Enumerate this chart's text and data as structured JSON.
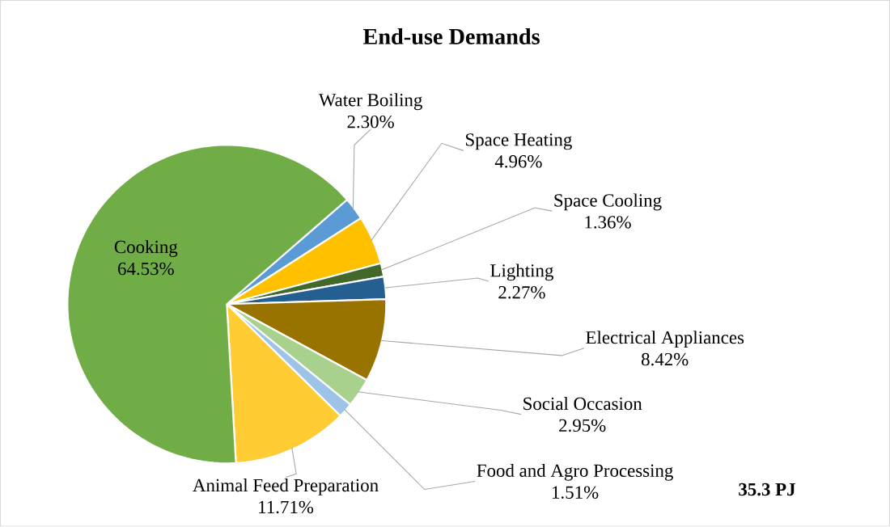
{
  "chart_data": {
    "type": "pie",
    "title": "End-use Demands",
    "categories": [
      "Water Boiling",
      "Space Heating",
      "Space Cooling",
      "Lighting",
      "Electrical Appliances",
      "Social Occasion",
      "Food and Agro Processing",
      "Animal Feed Preparation",
      "Cooking"
    ],
    "values": [
      2.3,
      4.96,
      1.36,
      2.27,
      8.42,
      2.95,
      1.51,
      11.71,
      64.53
    ],
    "value_labels": [
      "2.30%",
      "4.96%",
      "1.36%",
      "2.27%",
      "8.42%",
      "2.95%",
      "1.51%",
      "11.71%",
      "64.53%"
    ],
    "colors": [
      "#5b9bd5",
      "#ffc000",
      "#43682b",
      "#255e91",
      "#997300",
      "#a9d18e",
      "#9dc3e6",
      "#ffcd33",
      "#70ad47"
    ],
    "annotations": [
      "35.3 PJ"
    ]
  }
}
